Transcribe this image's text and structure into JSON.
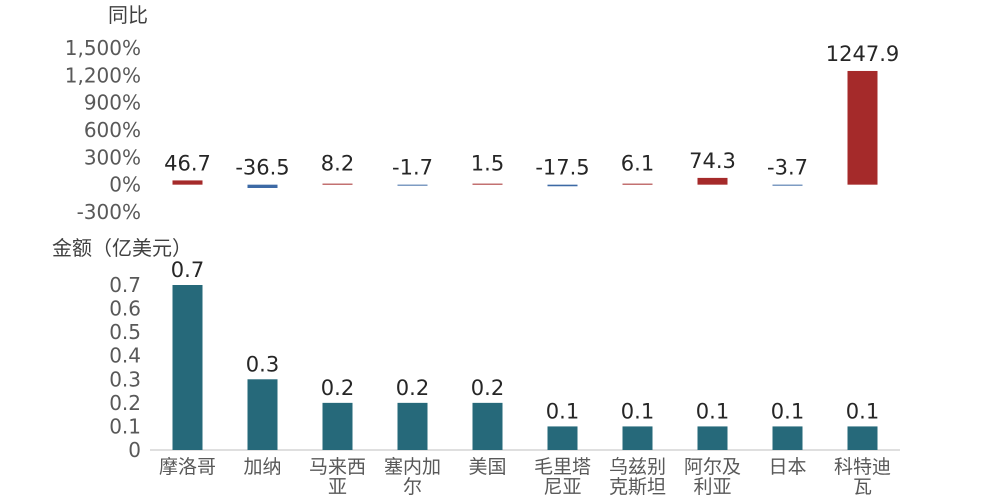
{
  "chart_data": [
    {
      "type": "bar",
      "title": "同比",
      "categories": [
        "摩洛哥",
        "加纳",
        "马来西亚",
        "塞内加尔",
        "美国",
        "毛里塔尼亚",
        "乌兹别克斯坦",
        "阿尔及利亚",
        "日本",
        "科特迪瓦"
      ],
      "values": [
        46.7,
        -36.5,
        8.2,
        -1.7,
        1.5,
        -17.5,
        6.1,
        74.3,
        -3.7,
        1247.9
      ],
      "data_labels": [
        "46.7",
        "-36.5",
        "8.2",
        "-1.7",
        "1.5",
        "-17.5",
        "6.1",
        "74.3",
        "-3.7",
        "1247.9"
      ],
      "yticks": [
        "1,500%",
        "1,200%",
        "900%",
        "600%",
        "300%",
        "0%",
        "-300%"
      ],
      "yticks_values": [
        1500,
        1200,
        900,
        600,
        300,
        0,
        -300
      ],
      "ylim": [
        -300,
        1500
      ],
      "colors": {
        "positive": "#A52A2A",
        "negative": "#3D6AA5"
      }
    },
    {
      "type": "bar",
      "title": "金额（亿美元）",
      "categories": [
        "摩洛哥",
        "加纳",
        "马来西亚",
        "塞内加尔",
        "美国",
        "毛里塔尼亚",
        "乌兹别克斯坦",
        "阿尔及利亚",
        "日本",
        "科特迪瓦"
      ],
      "category_lines": [
        [
          "摩洛哥"
        ],
        [
          "加纳"
        ],
        [
          "马来西",
          "亚"
        ],
        [
          "塞内加",
          "尔"
        ],
        [
          "美国"
        ],
        [
          "毛里塔",
          "尼亚"
        ],
        [
          "乌兹别",
          "克斯坦"
        ],
        [
          "阿尔及",
          "利亚"
        ],
        [
          "日本"
        ],
        [
          "科特迪",
          "瓦"
        ]
      ],
      "values": [
        0.7,
        0.3,
        0.2,
        0.2,
        0.2,
        0.1,
        0.1,
        0.1,
        0.1,
        0.1
      ],
      "data_labels": [
        "0.7",
        "0.3",
        "0.2",
        "0.2",
        "0.2",
        "0.1",
        "0.1",
        "0.1",
        "0.1",
        "0.1"
      ],
      "yticks": [
        "0.7",
        "0.6",
        "0.5",
        "0.4",
        "0.3",
        "0.2",
        "0.1",
        "0"
      ],
      "yticks_values": [
        0.7,
        0.6,
        0.5,
        0.4,
        0.3,
        0.2,
        0.1,
        0
      ],
      "ylim": [
        0,
        0.7
      ],
      "colors": {
        "bar": "#26697A"
      }
    }
  ]
}
